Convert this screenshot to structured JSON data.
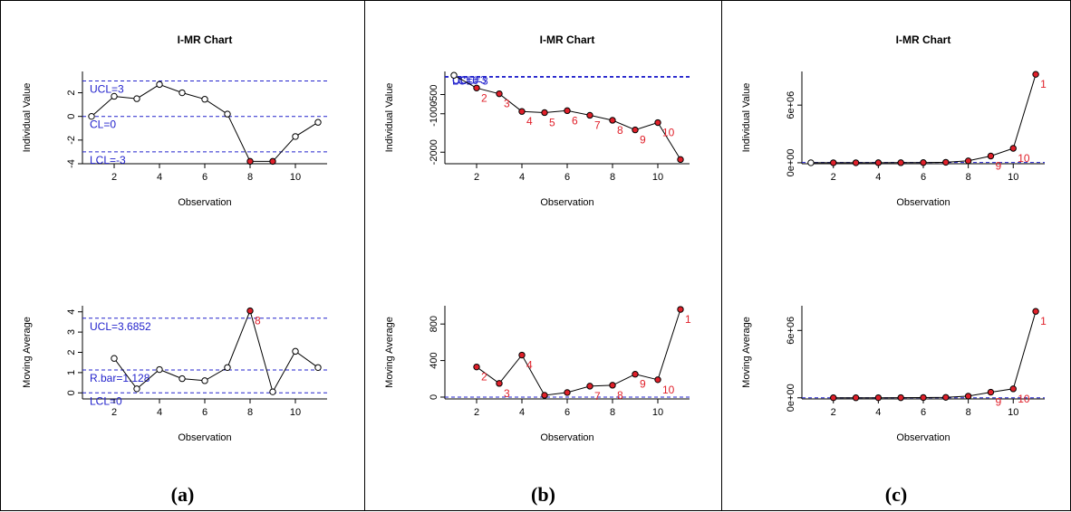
{
  "panels": [
    {
      "label": "(a)"
    },
    {
      "label": "(b)"
    },
    {
      "label": "(c)"
    }
  ],
  "chart_data": [
    {
      "type": "line",
      "panel": 0,
      "row": "individual",
      "title": "I-MR Chart",
      "xlabel": "Observation",
      "ylabel": "Individual Value",
      "x": [
        1,
        2,
        3,
        4,
        5,
        6,
        7,
        8,
        9,
        10,
        11
      ],
      "values": [
        0,
        1.7,
        1.5,
        2.7,
        2.0,
        1.45,
        0.2,
        -3.8,
        -3.8,
        -1.7,
        -0.5
      ],
      "xlim": [
        0.6,
        11.4
      ],
      "ylim": [
        -4,
        3.8
      ],
      "xticks": [
        2,
        4,
        6,
        8,
        10
      ],
      "yticks": [
        -4,
        -2,
        0,
        2
      ],
      "control_lines": [
        {
          "value": 3,
          "text": "UCL=3"
        },
        {
          "value": 0,
          "text": "CL=0"
        },
        {
          "value": -3,
          "text": "LCL=-3"
        }
      ],
      "out_of_control": [
        8,
        9
      ],
      "point_labels": []
    },
    {
      "type": "line",
      "panel": 1,
      "row": "individual",
      "title": "I-MR Chart",
      "xlabel": "Observation",
      "ylabel": "Individual Value",
      "x": [
        1,
        2,
        3,
        4,
        5,
        6,
        7,
        8,
        9,
        10,
        11
      ],
      "values": [
        0,
        -330,
        -480,
        -940,
        -970,
        -920,
        -1040,
        -1170,
        -1420,
        -1230,
        -2190
      ],
      "xlim": [
        0.6,
        11.4
      ],
      "ylim": [
        -2300,
        100
      ],
      "xticks": [
        2,
        4,
        6,
        8,
        10
      ],
      "yticks": [
        -2000,
        -1000,
        -500
      ],
      "control_lines": [
        {
          "value": -30,
          "text": "UCL=3"
        },
        {
          "value": -40,
          "text": "CL=0"
        },
        {
          "value": -50,
          "text": "LCL=-3"
        }
      ],
      "out_of_control": [
        2,
        3,
        4,
        5,
        6,
        7,
        8,
        9,
        10,
        11
      ],
      "point_labels": [
        {
          "x": 2,
          "text": "2"
        },
        {
          "x": 3,
          "text": "3"
        },
        {
          "x": 4,
          "text": "4"
        },
        {
          "x": 5,
          "text": "5"
        },
        {
          "x": 6,
          "text": "6"
        },
        {
          "x": 7,
          "text": "7"
        },
        {
          "x": 8,
          "text": "8"
        },
        {
          "x": 9,
          "text": "9"
        },
        {
          "x": 10,
          "text": "10"
        }
      ]
    },
    {
      "type": "line",
      "panel": 2,
      "row": "individual",
      "title": "I-MR Chart",
      "xlabel": "Observation",
      "ylabel": "Individual Value",
      "x": [
        1,
        2,
        3,
        4,
        5,
        6,
        7,
        8,
        9,
        10,
        11
      ],
      "values": [
        0,
        2000,
        3000,
        5000,
        10000,
        20000,
        50000,
        200000,
        700000,
        1500000,
        9200000
      ],
      "xlim": [
        0.6,
        11.4
      ],
      "ylim": [
        -100000,
        9500000
      ],
      "xticks": [
        2,
        4,
        6,
        8,
        10
      ],
      "yticks": [
        0,
        6000000
      ],
      "ytick_labels": [
        "0e+00",
        "6e+06"
      ],
      "control_lines": [
        {
          "value": 30000,
          "text": ""
        }
      ],
      "out_of_control": [
        2,
        3,
        4,
        5,
        6,
        7,
        8,
        9,
        10,
        11
      ],
      "point_labels": [
        {
          "x": 9,
          "text": "9"
        },
        {
          "x": 10,
          "text": "10"
        },
        {
          "x": 11,
          "text": "1"
        }
      ]
    },
    {
      "type": "line",
      "panel": 0,
      "row": "moving",
      "title": "",
      "xlabel": "Observation",
      "ylabel": "Moving Average",
      "x": [
        2,
        3,
        4,
        5,
        6,
        7,
        8,
        9,
        10,
        11
      ],
      "values": [
        1.7,
        0.2,
        1.15,
        0.7,
        0.6,
        1.25,
        4.05,
        0.05,
        2.05,
        1.25
      ],
      "xlim": [
        0.6,
        11.4
      ],
      "ylim": [
        -0.3,
        4.3
      ],
      "xticks": [
        2,
        4,
        6,
        8,
        10
      ],
      "yticks": [
        0,
        1,
        2,
        3,
        4
      ],
      "control_lines": [
        {
          "value": 3.6852,
          "text": "UCL=3.6852"
        },
        {
          "value": 1.128,
          "text": "R.bar=1.128"
        },
        {
          "value": 0,
          "text": "LCL=0"
        }
      ],
      "out_of_control": [
        8
      ],
      "point_labels": [
        {
          "x": 8,
          "text": "8"
        }
      ]
    },
    {
      "type": "line",
      "panel": 1,
      "row": "moving",
      "title": "",
      "xlabel": "Observation",
      "ylabel": "Moving Average",
      "x": [
        2,
        3,
        4,
        5,
        6,
        7,
        8,
        9,
        10,
        11
      ],
      "values": [
        330,
        150,
        460,
        20,
        50,
        120,
        130,
        250,
        190,
        960
      ],
      "xlim": [
        0.6,
        11.4
      ],
      "ylim": [
        -20,
        1000
      ],
      "xticks": [
        2,
        4,
        6,
        8,
        10
      ],
      "yticks": [
        0,
        400,
        800
      ],
      "control_lines": [
        {
          "value": 0,
          "text": ""
        }
      ],
      "out_of_control": [
        2,
        3,
        4,
        5,
        6,
        7,
        8,
        9,
        10,
        11
      ],
      "point_labels": [
        {
          "x": 2,
          "text": "2"
        },
        {
          "x": 3,
          "text": "3"
        },
        {
          "x": 4,
          "text": "4"
        },
        {
          "x": 7,
          "text": "7"
        },
        {
          "x": 8,
          "text": "8"
        },
        {
          "x": 9,
          "text": "9"
        },
        {
          "x": 10,
          "text": "10"
        },
        {
          "x": 11,
          "text": "1"
        }
      ]
    },
    {
      "type": "line",
      "panel": 2,
      "row": "moving",
      "title": "",
      "xlabel": "Observation",
      "ylabel": "Moving Average",
      "x": [
        2,
        3,
        4,
        5,
        6,
        7,
        8,
        9,
        10,
        11
      ],
      "values": [
        3000,
        5000,
        8000,
        10000,
        20000,
        40000,
        150000,
        500000,
        800000,
        7700000
      ],
      "xlim": [
        0.6,
        11.4
      ],
      "ylim": [
        -100000,
        8200000
      ],
      "xticks": [
        2,
        4,
        6,
        8,
        10
      ],
      "yticks": [
        0,
        6000000
      ],
      "ytick_labels": [
        "0e+00",
        "6e+06"
      ],
      "control_lines": [
        {
          "value": 0,
          "text": ""
        }
      ],
      "out_of_control": [
        2,
        3,
        4,
        5,
        6,
        7,
        8,
        9,
        10,
        11
      ],
      "point_labels": [
        {
          "x": 9,
          "text": "9"
        },
        {
          "x": 10,
          "text": "10"
        },
        {
          "x": 11,
          "text": "1"
        }
      ]
    }
  ]
}
